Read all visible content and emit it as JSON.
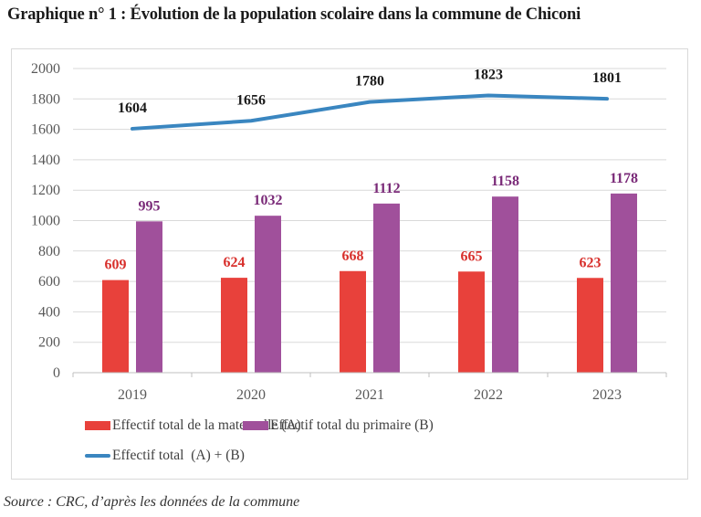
{
  "title": "Graphique n° 1 : Évolution de la population scolaire dans la commune de Chiconi",
  "source": "Source : CRC, d’après les données de la commune",
  "chart_data": {
    "type": "bar",
    "title": "Graphique n° 1 : Évolution de la population scolaire dans la commune de Chiconi",
    "xlabel": "",
    "ylabel": "",
    "categories": [
      "2019",
      "2020",
      "2021",
      "2022",
      "2023"
    ],
    "ylim": [
      0,
      2000
    ],
    "yticks": [
      0,
      200,
      400,
      600,
      800,
      1000,
      1200,
      1400,
      1600,
      1800,
      2000
    ],
    "grid": true,
    "legend_position": "bottom",
    "series": [
      {
        "name": "Effectif total de la maternelle (A)",
        "kind": "bar",
        "color": "#e8413b",
        "label_color": "#d8302c",
        "values": [
          609,
          624,
          668,
          665,
          623
        ]
      },
      {
        "name": "Effectif total du primaire (B)",
        "kind": "bar",
        "color": "#a0509b",
        "label_color": "#7a2a78",
        "values": [
          995,
          1032,
          1112,
          1158,
          1178
        ]
      },
      {
        "name": "Effectif total  (A) + (B)",
        "kind": "line",
        "color": "#3a86c0",
        "label_color": "#1a1a1a",
        "values": [
          1604,
          1656,
          1780,
          1823,
          1801
        ]
      }
    ]
  }
}
